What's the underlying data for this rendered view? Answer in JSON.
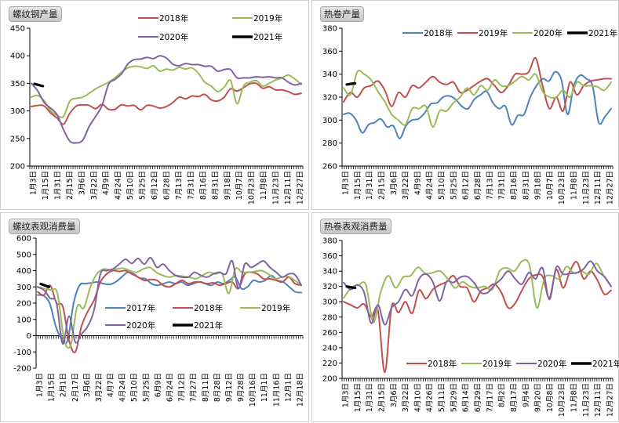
{
  "chart_data": [
    {
      "type": "line",
      "title": "螺纹钢产量",
      "ylim": [
        200,
        450
      ],
      "yticks": [
        200,
        250,
        300,
        350,
        400,
        450
      ],
      "x_tick_labels": [
        "1月3日",
        "1月15日",
        "1月31日",
        "2月15日",
        "3月6日",
        "3月22日",
        "4月9日",
        "4月24日",
        "5月10日",
        "5月25日",
        "6月12日",
        "6月28日",
        "7月13日",
        "7月31日",
        "8月16日",
        "8月31日",
        "9月18日",
        "10月7日",
        "10月23日",
        "11月8日",
        "11月23日",
        "12月11日",
        "12月27日"
      ],
      "legend_position": "top-right",
      "legend_cols": 2,
      "series": [
        {
          "name": "2018年",
          "color": "#C0504D",
          "values": [
            308,
            310,
            309,
            296,
            287,
            276,
            296,
            309,
            311,
            310,
            304,
            312,
            303,
            303,
            311,
            309,
            310,
            302,
            310,
            309,
            305,
            308,
            315,
            325,
            322,
            327,
            326,
            330,
            320,
            318,
            325,
            340,
            336,
            342,
            349,
            350,
            341,
            344,
            338,
            338,
            335,
            330,
            332
          ]
        },
        {
          "name": "2019年",
          "color": "#9BBB59",
          "values": [
            325,
            328,
            318,
            300,
            292,
            290,
            318,
            323,
            325,
            332,
            340,
            346,
            352,
            360,
            370,
            378,
            381,
            380,
            377,
            382,
            372,
            376,
            374,
            379,
            376,
            378,
            368,
            352,
            345,
            335,
            343,
            355,
            313,
            345,
            352,
            355,
            345,
            350,
            356,
            360,
            365,
            358,
            348
          ]
        },
        {
          "name": "2020年",
          "color": "#8064A2",
          "values": [
            350,
            336,
            315,
            305,
            293,
            266,
            245,
            242,
            247,
            272,
            290,
            310,
            348,
            357,
            367,
            385,
            393,
            394,
            397,
            395,
            400,
            396,
            385,
            382,
            386,
            384,
            384,
            381,
            381,
            372,
            375,
            375,
            360,
            360,
            360,
            362,
            361,
            362,
            360,
            360,
            352,
            347,
            350
          ]
        },
        {
          "name": "2021年",
          "color": "#000000",
          "values": [
            349,
            345
          ]
        }
      ]
    },
    {
      "type": "line",
      "title": "热卷产量",
      "ylim": [
        260,
        380
      ],
      "yticks": [
        260,
        280,
        300,
        320,
        340,
        360,
        380
      ],
      "x_tick_labels": [
        "1月3日",
        "1月15日",
        "1月31日",
        "2月15日",
        "3月6日",
        "3月22日",
        "4月9日",
        "4月24日",
        "5月10日",
        "5月25日",
        "6月12日",
        "6月28日",
        "7月13日",
        "7月31日",
        "8月16日",
        "8月31日",
        "9月18日",
        "10月7日",
        "10月23日",
        "11月8日",
        "11月23日",
        "12月11日",
        "12月27日"
      ],
      "legend_position": "top-right",
      "legend_cols": 4,
      "series": [
        {
          "name": "2018年",
          "color": "#4F81BD",
          "values": [
            305,
            306,
            300,
            289,
            296,
            298,
            301,
            294,
            295,
            284,
            295,
            300,
            301,
            306,
            314,
            315,
            320,
            321,
            318,
            312,
            310,
            318,
            322,
            325,
            315,
            310,
            312,
            296,
            304,
            305,
            320,
            330,
            336,
            334,
            342,
            335,
            305,
            330,
            339,
            336,
            330,
            298,
            303,
            310
          ]
        },
        {
          "name": "2019年",
          "color": "#C0504D",
          "values": [
            316,
            324,
            320,
            328,
            330,
            334,
            326,
            312,
            324,
            320,
            330,
            328,
            333,
            338,
            333,
            331,
            333,
            324,
            326,
            330,
            334,
            336,
            330,
            324,
            330,
            340,
            340,
            342,
            354,
            330,
            310,
            320,
            308,
            333,
            322,
            330,
            334,
            335,
            336,
            336
          ]
        },
        {
          "name": "2020年",
          "color": "#9BBB59",
          "values": [
            328,
            322,
            342,
            340,
            335,
            325,
            316,
            305,
            300,
            296,
            310,
            310,
            312,
            294,
            308,
            308,
            315,
            320,
            328,
            322,
            330,
            326,
            335,
            330,
            330,
            334,
            338,
            335,
            340,
            325,
            320,
            320,
            326,
            320,
            333,
            330,
            330,
            329,
            326,
            333
          ]
        },
        {
          "name": "2021年",
          "color": "#000000",
          "values": [
            331,
            332
          ]
        }
      ]
    },
    {
      "type": "line",
      "title": "螺纹表观消费量",
      "ylim": [
        -200,
        600
      ],
      "yticks": [
        -200,
        -100,
        0,
        100,
        200,
        300,
        400,
        500,
        600
      ],
      "x_tick_labels": [
        "1月3日",
        "1月15日",
        "2月1日",
        "2月17日",
        "3月6日",
        "3月22日",
        "4月7日",
        "4月24日",
        "5月10日",
        "5月25日",
        "6月9日",
        "6月24日",
        "7月12日",
        "7月27日",
        "8月11日",
        "8月28日",
        "9月12日",
        "9月28日",
        "10月16日",
        "11月1日",
        "11月16日",
        "12月1日",
        "12月18日"
      ],
      "legend_position": "bottom-center",
      "legend_cols": 3,
      "series": [
        {
          "name": "2017年",
          "color": "#4F81BD",
          "values": [
            250,
            245,
            200,
            60,
            -20,
            -30,
            200,
            310,
            320,
            325,
            330,
            320,
            315,
            330,
            360,
            390,
            380,
            355,
            350,
            320,
            310,
            320,
            330,
            320,
            330,
            310,
            320,
            330,
            320,
            310,
            330,
            320,
            340,
            360,
            290,
            300,
            340,
            330,
            340,
            370,
            340,
            330,
            300,
            270,
            265
          ]
        },
        {
          "name": "2018年",
          "color": "#C0504D",
          "values": [
            270,
            250,
            310,
            200,
            180,
            -30,
            -100,
            60,
            150,
            220,
            330,
            380,
            400,
            395,
            400,
            380,
            360,
            340,
            345,
            340,
            310,
            300,
            320,
            340,
            320,
            330,
            330,
            320,
            325,
            310,
            320,
            330,
            290,
            380,
            390,
            380,
            350,
            350,
            340,
            330,
            360,
            320,
            310
          ]
        },
        {
          "name": "2019年",
          "color": "#9BBB59",
          "values": [
            300,
            290,
            280,
            260,
            -20,
            -60,
            180,
            170,
            300,
            380,
            410,
            405,
            410,
            415,
            400,
            390,
            410,
            420,
            390,
            370,
            360,
            370,
            365,
            360,
            350,
            370,
            390,
            380,
            380,
            260,
            410,
            390,
            390,
            395,
            400,
            380,
            350,
            360,
            365,
            340,
            310
          ]
        },
        {
          "name": "2020年",
          "color": "#8064A2",
          "values": [
            300,
            280,
            230,
            200,
            -50,
            120,
            -40,
            10,
            60,
            160,
            380,
            400,
            410,
            440,
            470,
            445,
            475,
            440,
            480,
            420,
            440,
            400,
            370,
            360,
            360,
            390,
            370,
            360,
            380,
            390,
            380,
            460,
            290,
            440,
            420,
            440,
            460,
            420,
            390,
            360,
            380,
            375,
            310
          ]
        },
        {
          "name": "2021年",
          "color": "#000000",
          "values": [
            318,
            300
          ]
        }
      ]
    },
    {
      "type": "line",
      "title": "热卷表观消费量",
      "ylim": [
        200,
        380
      ],
      "yticks": [
        200,
        220,
        240,
        260,
        280,
        300,
        320,
        340,
        360,
        380
      ],
      "x_tick_labels": [
        "1月3日",
        "1月15日",
        "1月31日",
        "2月15日",
        "3月6日",
        "3月22日",
        "4月10日",
        "4月26日",
        "5月11日",
        "5月29日",
        "6月14日",
        "6月29日",
        "7月17日",
        "8月2日",
        "8月17日",
        "9月4日",
        "9月20日",
        "10月8日",
        "10月23日",
        "11月8日",
        "11月23日",
        "12月11日",
        "12月27日"
      ],
      "legend_position": "bottom-right",
      "legend_cols": 4,
      "series": [
        {
          "name": "2018年",
          "color": "#C0504D",
          "values": [
            300,
            296,
            292,
            297,
            280,
            289,
            208,
            294,
            286,
            300,
            285,
            315,
            304,
            316,
            322,
            326,
            334,
            320,
            318,
            300,
            314,
            318,
            323,
            312,
            292,
            298,
            315,
            330,
            335,
            333,
            305,
            342,
            318,
            340,
            352,
            330,
            340,
            328,
            310,
            315
          ]
        },
        {
          "name": "2019年",
          "color": "#9BBB59",
          "values": [
            305,
            318,
            322,
            322,
            273,
            313,
            334,
            318,
            332,
            334,
            345,
            337,
            338,
            340,
            330,
            318,
            326,
            320,
            318,
            320,
            316,
            340,
            344,
            340,
            353,
            348,
            292,
            330,
            334,
            330,
            346,
            337,
            340,
            336,
            350,
            334,
            320
          ]
        },
        {
          "name": "2020年",
          "color": "#8064A2",
          "values": [
            325,
            316,
            322,
            312,
            272,
            296,
            270,
            292,
            300,
            316,
            308,
            330,
            336,
            326,
            301,
            326,
            325,
            332,
            333,
            325,
            312,
            312,
            322,
            330,
            340,
            330,
            323,
            338,
            330,
            344,
            303,
            345,
            336,
            337,
            338,
            343,
            353,
            340,
            333,
            320
          ]
        },
        {
          "name": "2021年",
          "color": "#000000",
          "values": [
            320,
            318
          ]
        }
      ]
    }
  ]
}
